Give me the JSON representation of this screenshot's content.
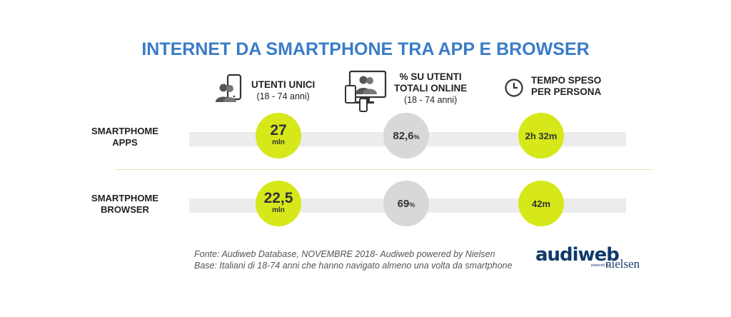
{
  "title": "INTERNET DA SMARTPHONE TRA APP E BROWSER",
  "columns": [
    {
      "icon": "smartphone-users-icon",
      "title": "UTENTI UNICI",
      "subtitle": "(18 - 74 anni)"
    },
    {
      "icon": "devices-users-icon",
      "title_line1": "% SU UTENTI",
      "title_line2": "TOTALI ONLINE",
      "subtitle": "(18 - 74 anni)"
    },
    {
      "icon": "clock-icon",
      "title_line1": "TEMPO SPESO",
      "title_line2": "PER PERSONA"
    }
  ],
  "rows": [
    {
      "label_line1": "SMARTPHOME",
      "label_line2": "APPS",
      "users": "27",
      "users_unit": "mln",
      "share": "82,6",
      "share_unit": "%",
      "time": "2h 32m"
    },
    {
      "label_line1": "SMARTPHOME",
      "label_line2": "BROWSER",
      "users": "22,5",
      "users_unit": "mln",
      "share": "69",
      "share_unit": "%",
      "time": "42m"
    }
  ],
  "footer": {
    "source": "Fonte: Audiweb Database, NOVEMBRE 2018- Audiweb powered by Nielsen",
    "base": "Base: Italiani di 18-74 anni che hanno navigato almeno una volta da smartphone"
  },
  "logo": {
    "brand": "audiweb",
    "powered": "powered by",
    "partner": "nielsen"
  },
  "colors": {
    "title": "#3a7cc7",
    "highlight": "#d6e81a",
    "neutral": "#d8d8d8"
  }
}
